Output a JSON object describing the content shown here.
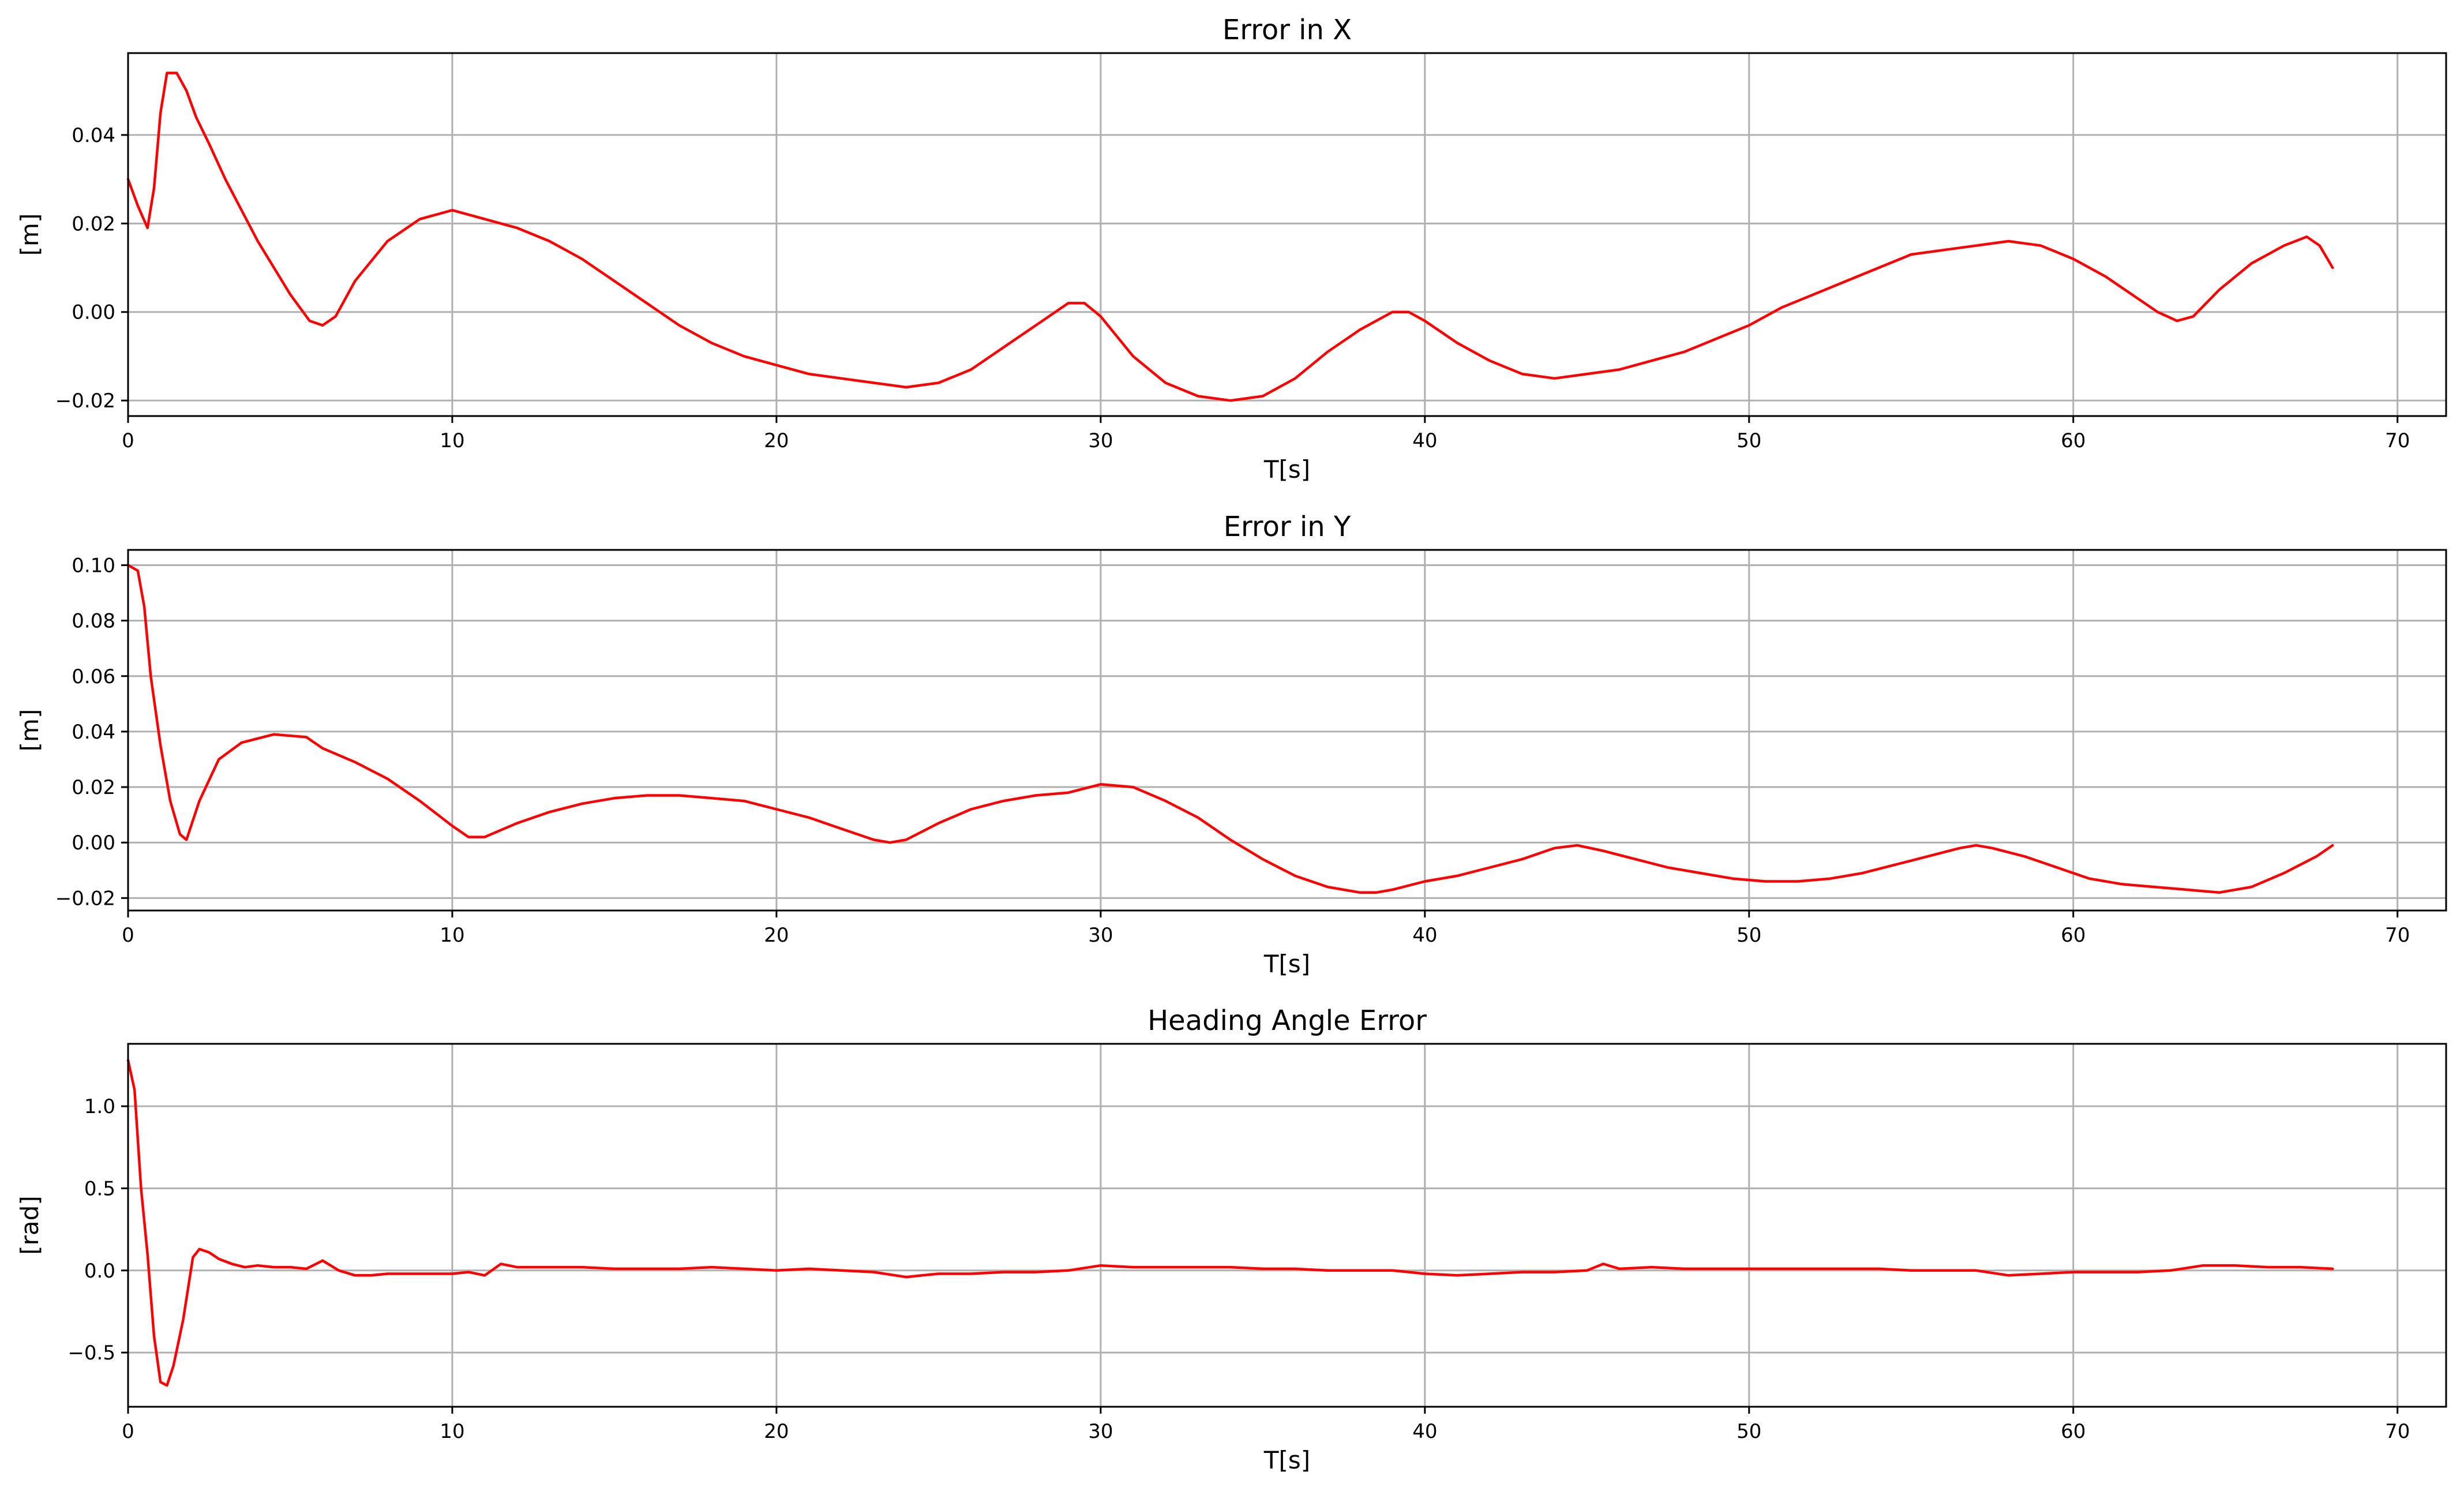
{
  "figure": {
    "background": "#ffffff",
    "line_color": "#ff0000",
    "grid_color": "#b0b0b0"
  },
  "chart_data": [
    {
      "type": "line",
      "title": "Error in X",
      "xlabel": "T[s]",
      "ylabel": "[m]",
      "xlim": [
        0,
        71.5
      ],
      "ylim": [
        -0.0235,
        0.0585
      ],
      "xticks": [
        0,
        10,
        20,
        30,
        40,
        50,
        60,
        70
      ],
      "yticks": [
        -0.02,
        0.0,
        0.02,
        0.04
      ],
      "ytick_labels": [
        "−0.02",
        "0.00",
        "0.02",
        "0.04"
      ],
      "grid": true,
      "series": [
        {
          "color": "#ff0000",
          "x": [
            0,
            0.3,
            0.6,
            0.8,
            1.0,
            1.2,
            1.5,
            1.8,
            2.1,
            2.5,
            3.0,
            4.0,
            5.0,
            5.6,
            6.0,
            6.4,
            7.0,
            8.0,
            9.0,
            10.0,
            11.0,
            12.0,
            13.0,
            14.0,
            15.0,
            16.0,
            17.0,
            18.0,
            19.0,
            20.0,
            21.0,
            22.0,
            23.0,
            24.0,
            25.0,
            26.0,
            27.0,
            28.0,
            29.0,
            29.5,
            30.0,
            31.0,
            32.0,
            33.0,
            34.0,
            35.0,
            36.0,
            37.0,
            38.0,
            39.0,
            39.5,
            40.0,
            41.0,
            42.0,
            43.0,
            44.0,
            45.0,
            46.0,
            47.0,
            48.0,
            49.0,
            50.0,
            51.0,
            52.0,
            53.0,
            54.0,
            55.0,
            56.0,
            57.0,
            58.0,
            59.0,
            60.0,
            61.0,
            62.0,
            62.6,
            63.2,
            63.7,
            64.5,
            65.5,
            66.5,
            67.2,
            67.6,
            68.0
          ],
          "y": [
            0.03,
            0.024,
            0.019,
            0.028,
            0.045,
            0.054,
            0.054,
            0.05,
            0.044,
            0.038,
            0.03,
            0.016,
            0.004,
            -0.002,
            -0.003,
            -0.001,
            0.007,
            0.016,
            0.021,
            0.023,
            0.021,
            0.019,
            0.016,
            0.012,
            0.007,
            0.002,
            -0.003,
            -0.007,
            -0.01,
            -0.012,
            -0.014,
            -0.015,
            -0.016,
            -0.017,
            -0.016,
            -0.013,
            -0.008,
            -0.003,
            0.002,
            0.002,
            -0.001,
            -0.01,
            -0.016,
            -0.019,
            -0.02,
            -0.019,
            -0.015,
            -0.009,
            -0.004,
            0.0,
            0.0,
            -0.002,
            -0.007,
            -0.011,
            -0.014,
            -0.015,
            -0.014,
            -0.013,
            -0.011,
            -0.009,
            -0.006,
            -0.003,
            0.001,
            0.004,
            0.007,
            0.01,
            0.013,
            0.014,
            0.015,
            0.016,
            0.015,
            0.012,
            0.008,
            0.003,
            0.0,
            -0.002,
            -0.001,
            0.005,
            0.011,
            0.015,
            0.017,
            0.015,
            0.01
          ]
        }
      ]
    },
    {
      "type": "line",
      "title": "Error in Y",
      "xlabel": "T[s]",
      "ylabel": "[m]",
      "xlim": [
        0,
        71.5
      ],
      "ylim": [
        -0.0245,
        0.1055
      ],
      "xticks": [
        0,
        10,
        20,
        30,
        40,
        50,
        60,
        70
      ],
      "yticks": [
        -0.02,
        0.0,
        0.02,
        0.04,
        0.06,
        0.08,
        0.1
      ],
      "ytick_labels": [
        "−0.02",
        "0.00",
        "0.02",
        "0.04",
        "0.06",
        "0.08",
        "0.10"
      ],
      "grid": true,
      "series": [
        {
          "color": "#ff0000",
          "x": [
            0,
            0.3,
            0.5,
            0.7,
            1.0,
            1.3,
            1.6,
            1.8,
            2.2,
            2.8,
            3.5,
            4.5,
            5.5,
            6.0,
            7.0,
            8.0,
            9.0,
            10.0,
            10.5,
            11.0,
            12.0,
            13.0,
            14.0,
            15.0,
            16.0,
            17.0,
            18.0,
            19.0,
            20.0,
            21.0,
            22.0,
            23.0,
            23.5,
            24.0,
            25.0,
            26.0,
            27.0,
            28.0,
            29.0,
            30.0,
            31.0,
            32.0,
            33.0,
            34.0,
            35.0,
            36.0,
            37.0,
            38.0,
            38.5,
            39.0,
            40.0,
            41.0,
            42.0,
            43.0,
            44.0,
            44.7,
            45.5,
            46.5,
            47.5,
            48.5,
            49.5,
            50.5,
            51.5,
            52.5,
            53.5,
            54.5,
            55.5,
            56.5,
            57.0,
            57.5,
            58.5,
            59.5,
            60.5,
            61.5,
            62.5,
            63.5,
            64.5,
            65.5,
            66.5,
            67.5,
            68.0
          ],
          "y": [
            0.1,
            0.098,
            0.085,
            0.06,
            0.035,
            0.015,
            0.003,
            0.001,
            0.015,
            0.03,
            0.036,
            0.039,
            0.038,
            0.034,
            0.029,
            0.023,
            0.015,
            0.006,
            0.002,
            0.002,
            0.007,
            0.011,
            0.014,
            0.016,
            0.017,
            0.017,
            0.016,
            0.015,
            0.012,
            0.009,
            0.005,
            0.001,
            0.0,
            0.001,
            0.007,
            0.012,
            0.015,
            0.017,
            0.018,
            0.021,
            0.02,
            0.015,
            0.009,
            0.001,
            -0.006,
            -0.012,
            -0.016,
            -0.018,
            -0.018,
            -0.017,
            -0.014,
            -0.012,
            -0.009,
            -0.006,
            -0.002,
            -0.001,
            -0.003,
            -0.006,
            -0.009,
            -0.011,
            -0.013,
            -0.014,
            -0.014,
            -0.013,
            -0.011,
            -0.008,
            -0.005,
            -0.002,
            -0.001,
            -0.002,
            -0.005,
            -0.009,
            -0.013,
            -0.015,
            -0.016,
            -0.017,
            -0.018,
            -0.016,
            -0.011,
            -0.005,
            -0.001
          ]
        }
      ]
    },
    {
      "type": "line",
      "title": "Heading Angle Error",
      "xlabel": "T[s]",
      "ylabel": "[rad]",
      "xlim": [
        0,
        71.5
      ],
      "ylim": [
        -0.83,
        1.38
      ],
      "xticks": [
        0,
        10,
        20,
        30,
        40,
        50,
        60,
        70
      ],
      "yticks": [
        -0.5,
        0.0,
        0.5,
        1.0
      ],
      "ytick_labels": [
        "−0.5",
        "0.0",
        "0.5",
        "1.0"
      ],
      "grid": true,
      "series": [
        {
          "color": "#ff0000",
          "x": [
            0,
            0.2,
            0.4,
            0.6,
            0.8,
            1.0,
            1.2,
            1.4,
            1.7,
            2.0,
            2.2,
            2.5,
            2.8,
            3.2,
            3.6,
            4.0,
            4.5,
            5.0,
            5.5,
            6.0,
            6.5,
            7.0,
            7.5,
            8.0,
            9.0,
            10.0,
            10.5,
            11.0,
            11.5,
            12.0,
            13.0,
            14.0,
            15.0,
            16.0,
            17.0,
            18.0,
            19.0,
            20.0,
            21.0,
            22.0,
            23.0,
            24.0,
            24.5,
            25.0,
            26.0,
            27.0,
            28.0,
            29.0,
            30.0,
            31.0,
            32.0,
            33.0,
            34.0,
            35.0,
            36.0,
            37.0,
            38.0,
            39.0,
            40.0,
            41.0,
            42.0,
            43.0,
            44.0,
            45.0,
            45.5,
            46.0,
            47.0,
            48.0,
            49.0,
            50.0,
            51.0,
            52.0,
            53.0,
            54.0,
            55.0,
            56.0,
            57.0,
            58.0,
            59.0,
            60.0,
            61.0,
            62.0,
            63.0,
            64.0,
            65.0,
            66.0,
            67.0,
            68.0
          ],
          "y": [
            1.28,
            1.1,
            0.5,
            0.1,
            -0.4,
            -0.68,
            -0.7,
            -0.58,
            -0.3,
            0.08,
            0.13,
            0.11,
            0.07,
            0.04,
            0.02,
            0.03,
            0.02,
            0.02,
            0.01,
            0.06,
            0.0,
            -0.03,
            -0.03,
            -0.02,
            -0.02,
            -0.02,
            -0.01,
            -0.03,
            0.04,
            0.02,
            0.02,
            0.02,
            0.01,
            0.01,
            0.01,
            0.02,
            0.01,
            0.0,
            0.01,
            0.0,
            -0.01,
            -0.04,
            -0.03,
            -0.02,
            -0.02,
            -0.01,
            -0.01,
            0.0,
            0.03,
            0.02,
            0.02,
            0.02,
            0.02,
            0.01,
            0.01,
            0.0,
            0.0,
            0.0,
            -0.02,
            -0.03,
            -0.02,
            -0.01,
            -0.01,
            0.0,
            0.04,
            0.01,
            0.02,
            0.01,
            0.01,
            0.01,
            0.01,
            0.01,
            0.01,
            0.01,
            0.0,
            0.0,
            0.0,
            -0.03,
            -0.02,
            -0.01,
            -0.01,
            -0.01,
            0.0,
            0.03,
            0.03,
            0.02,
            0.02,
            0.01
          ]
        }
      ]
    }
  ]
}
